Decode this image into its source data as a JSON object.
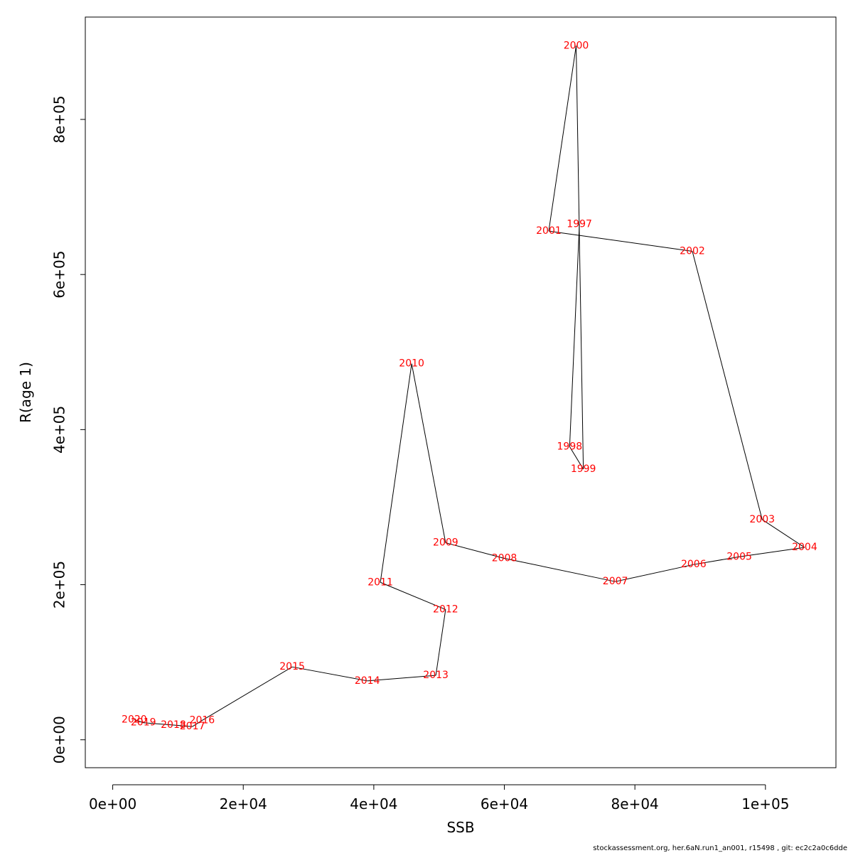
{
  "chart_data": {
    "type": "line",
    "xlabel": "SSB",
    "ylabel": "R(age 1)",
    "xlim": [
      -4200,
      110800
    ],
    "ylim": [
      -36000,
      932000
    ],
    "x_ticks": [
      {
        "value": 0,
        "label": "0e+00"
      },
      {
        "value": 20000,
        "label": "2e+04"
      },
      {
        "value": 40000,
        "label": "4e+04"
      },
      {
        "value": 60000,
        "label": "6e+04"
      },
      {
        "value": 80000,
        "label": "8e+04"
      },
      {
        "value": 100000,
        "label": "1e+05"
      }
    ],
    "y_ticks": [
      {
        "value": 0,
        "label": "0e+00"
      },
      {
        "value": 200000,
        "label": "2e+05"
      },
      {
        "value": 400000,
        "label": "4e+05"
      },
      {
        "value": 600000,
        "label": "6e+05"
      },
      {
        "value": 800000,
        "label": "8e+05"
      }
    ],
    "grid": false,
    "label_color": "#ff0000",
    "line_color": "#000000",
    "points": [
      {
        "label": "1997",
        "x": 71500,
        "y": 665000
      },
      {
        "label": "1998",
        "x": 70000,
        "y": 378000
      },
      {
        "label": "1999",
        "x": 72100,
        "y": 349000
      },
      {
        "label": "2000",
        "x": 71000,
        "y": 895000
      },
      {
        "label": "2001",
        "x": 66800,
        "y": 656000
      },
      {
        "label": "2002",
        "x": 88800,
        "y": 630000
      },
      {
        "label": "2003",
        "x": 99500,
        "y": 284000
      },
      {
        "label": "2004",
        "x": 106000,
        "y": 248000
      },
      {
        "label": "2005",
        "x": 96000,
        "y": 236000
      },
      {
        "label": "2006",
        "x": 89000,
        "y": 226000
      },
      {
        "label": "2007",
        "x": 77000,
        "y": 204000
      },
      {
        "label": "2008",
        "x": 60000,
        "y": 234000
      },
      {
        "label": "2009",
        "x": 51000,
        "y": 254000
      },
      {
        "label": "2010",
        "x": 45800,
        "y": 485000
      },
      {
        "label": "2011",
        "x": 41000,
        "y": 203000
      },
      {
        "label": "2012",
        "x": 51000,
        "y": 168000
      },
      {
        "label": "2013",
        "x": 49500,
        "y": 83000
      },
      {
        "label": "2014",
        "x": 39000,
        "y": 76000
      },
      {
        "label": "2015",
        "x": 27500,
        "y": 94000
      },
      {
        "label": "2016",
        "x": 13700,
        "y": 25000
      },
      {
        "label": "2017",
        "x": 12200,
        "y": 17000
      },
      {
        "label": "2018",
        "x": 9300,
        "y": 19000
      },
      {
        "label": "2019",
        "x": 4700,
        "y": 22000
      },
      {
        "label": "2020",
        "x": 3300,
        "y": 26000
      }
    ]
  },
  "footer": "stockassessment.org, her.6aN.run1_an001, r15498 , git: ec2c2a0c6dde"
}
